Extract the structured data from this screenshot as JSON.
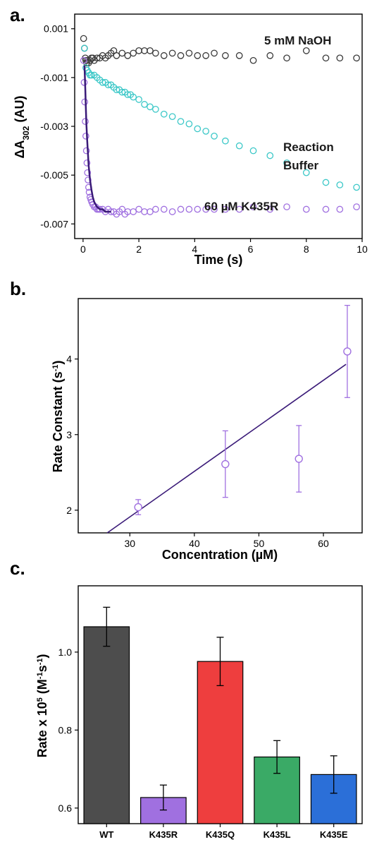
{
  "chart_data": [
    {
      "panel": "a.",
      "type": "scatter",
      "xlabel": "Time (s)",
      "ylabel_prefix": "ΔA",
      "ylabel_sub": "302",
      "ylabel_suffix": " (AU)",
      "xlim": [
        -0.3,
        10
      ],
      "ylim": [
        -0.0076,
        0.0016
      ],
      "xticks": [
        0,
        2,
        4,
        6,
        8,
        10
      ],
      "yticks": [
        -0.007,
        -0.005,
        -0.003,
        -0.001,
        0.001
      ],
      "ytick_labels": [
        "-0.007",
        "-0.005",
        "-0.003",
        "-0.001",
        "0.001"
      ],
      "annotations": [
        "5 mM NaOH",
        "Reaction",
        "Buffer",
        "60 µM K435R"
      ],
      "series": [
        {
          "color": "#3a3a3a",
          "x": [
            0.02,
            0.05,
            0.08,
            0.1,
            0.13,
            0.16,
            0.2,
            0.25,
            0.3,
            0.35,
            0.4,
            0.5,
            0.6,
            0.7,
            0.8,
            0.9,
            1.0,
            1.1,
            1.2,
            1.4,
            1.6,
            1.8,
            2.0,
            2.2,
            2.4,
            2.6,
            2.9,
            3.2,
            3.5,
            3.8,
            4.1,
            4.4,
            4.7,
            5.1,
            5.6,
            6.1,
            6.7,
            7.3,
            8.0,
            8.7,
            9.2,
            9.8
          ],
          "y": [
            0.0006,
            0.0002,
            -0.0002,
            -0.0003,
            -0.0004,
            -0.0003,
            -0.0004,
            -0.0003,
            -0.0002,
            -0.0002,
            -0.0003,
            -0.0002,
            -0.0002,
            -0.0001,
            -0.0002,
            -0.0001,
            0.0,
            0.0001,
            -0.0001,
            0.0,
            -0.0001,
            0.0,
            0.0001,
            0.0001,
            0.0001,
            0.0,
            -0.0001,
            0.0,
            -0.0001,
            0.0,
            -0.0001,
            -0.0001,
            0.0,
            -0.0001,
            -0.0001,
            -0.0003,
            -0.0001,
            -0.0002,
            0.0001,
            -0.0002,
            -0.0002,
            -0.0002
          ]
        },
        {
          "color": "#3cc8c8",
          "x": [
            0.05,
            0.1,
            0.15,
            0.2,
            0.25,
            0.3,
            0.4,
            0.5,
            0.6,
            0.7,
            0.8,
            0.9,
            1.0,
            1.1,
            1.2,
            1.3,
            1.4,
            1.5,
            1.6,
            1.7,
            1.8,
            2.0,
            2.2,
            2.4,
            2.6,
            2.9,
            3.2,
            3.5,
            3.8,
            4.1,
            4.4,
            4.7,
            5.1,
            5.6,
            6.1,
            6.7,
            7.3,
            8.0,
            8.7,
            9.2,
            9.8
          ],
          "y": [
            0.0002,
            -0.0006,
            -0.0007,
            -0.0008,
            -0.0009,
            -0.0009,
            -0.0009,
            -0.001,
            -0.0011,
            -0.0012,
            -0.0012,
            -0.0013,
            -0.0013,
            -0.0014,
            -0.0015,
            -0.0015,
            -0.0016,
            -0.0016,
            -0.0017,
            -0.0017,
            -0.0018,
            -0.0019,
            -0.0021,
            -0.0022,
            -0.0023,
            -0.0025,
            -0.0026,
            -0.0028,
            -0.0029,
            -0.0031,
            -0.0032,
            -0.0034,
            -0.0036,
            -0.0038,
            -0.004,
            -0.0042,
            -0.0045,
            -0.0049,
            -0.0053,
            -0.0054,
            -0.0055
          ]
        },
        {
          "color": "#a070e0",
          "x": [
            0.02,
            0.04,
            0.06,
            0.08,
            0.1,
            0.12,
            0.14,
            0.16,
            0.18,
            0.2,
            0.22,
            0.25,
            0.28,
            0.31,
            0.35,
            0.4,
            0.45,
            0.5,
            0.55,
            0.6,
            0.7,
            0.8,
            0.9,
            1.0,
            1.1,
            1.2,
            1.3,
            1.4,
            1.5,
            1.6,
            1.8,
            2.0,
            2.2,
            2.4,
            2.6,
            2.9,
            3.2,
            3.5,
            3.8,
            4.1,
            4.4,
            4.7,
            5.1,
            5.6,
            6.1,
            6.7,
            7.3,
            8.0,
            8.7,
            9.2,
            9.8
          ],
          "y": [
            -0.0003,
            -0.0012,
            -0.002,
            -0.0028,
            -0.0034,
            -0.004,
            -0.0045,
            -0.0049,
            -0.0052,
            -0.0055,
            -0.0057,
            -0.0059,
            -0.006,
            -0.0061,
            -0.0062,
            -0.0063,
            -0.0063,
            -0.0064,
            -0.0064,
            -0.0064,
            -0.0064,
            -0.0065,
            -0.0064,
            -0.0065,
            -0.0065,
            -0.0066,
            -0.0065,
            -0.0064,
            -0.0066,
            -0.0065,
            -0.0065,
            -0.0064,
            -0.0065,
            -0.0065,
            -0.0064,
            -0.0064,
            -0.0065,
            -0.0064,
            -0.0064,
            -0.0064,
            -0.0064,
            -0.0064,
            -0.0064,
            -0.0064,
            -0.0063,
            -0.0064,
            -0.0063,
            -0.0064,
            -0.0064,
            -0.0064,
            -0.0063
          ]
        }
      ],
      "fit": {
        "color": "#3a1a78",
        "x": [
          0.05,
          0.08,
          0.1,
          0.12,
          0.15,
          0.2,
          0.25,
          0.3,
          0.35,
          0.4,
          0.5,
          0.6,
          0.7,
          0.8,
          0.9,
          1.0
        ],
        "y": [
          -0.0005,
          -0.0015,
          -0.0022,
          -0.0029,
          -0.0036,
          -0.0046,
          -0.0052,
          -0.0056,
          -0.0059,
          -0.0061,
          -0.0063,
          -0.0064,
          -0.0064,
          -0.0065,
          -0.0065,
          -0.0065
        ]
      }
    },
    {
      "panel": "b.",
      "type": "scatter",
      "xlabel": "Concentration (µM)",
      "ylabel_prefix": "Rate Constant (s",
      "ylabel_sup": "-1",
      "ylabel_suffix": ")",
      "xlim": [
        22,
        66
      ],
      "ylim": [
        1.7,
        4.8
      ],
      "xticks": [
        30,
        40,
        50,
        60
      ],
      "yticks": [
        2,
        3,
        4
      ],
      "points": [
        {
          "x": 31.3,
          "y": 2.04,
          "err": 0.1
        },
        {
          "x": 44.8,
          "y": 2.61,
          "err": 0.44
        },
        {
          "x": 56.2,
          "y": 2.68,
          "err": 0.44
        },
        {
          "x": 63.7,
          "y": 4.1,
          "err": 0.61
        }
      ],
      "point_color": "#a070e0",
      "fit_line": {
        "x": [
          26.5,
          63.5
        ],
        "y": [
          1.7,
          3.93
        ],
        "color": "#3a1a78"
      }
    },
    {
      "panel": "c.",
      "type": "bar",
      "xlabel": "",
      "ylabel_prefix": "Rate x 10",
      "ylabel_sup5": "5",
      "ylabel_mid": " (M",
      "ylabel_sup1": "-1",
      "ylabel_mid2": "s",
      "ylabel_sup2": "-1",
      "ylabel_suffix": ")",
      "ylim": [
        0.56,
        1.17
      ],
      "yticks": [
        0.6,
        0.8,
        1.0
      ],
      "ytick_labels": [
        "0.6",
        "0.8",
        "1.0"
      ],
      "categories": [
        "WT",
        "K435R",
        "K435Q",
        "K435L",
        "K435E"
      ],
      "values": [
        1.065,
        0.627,
        0.976,
        0.731,
        0.686
      ],
      "errors": [
        0.05,
        0.032,
        0.062,
        0.042,
        0.048
      ],
      "colors": [
        "#4d4d4d",
        "#a070e0",
        "#ee3e3e",
        "#3aaa66",
        "#2b6fd8"
      ]
    }
  ]
}
